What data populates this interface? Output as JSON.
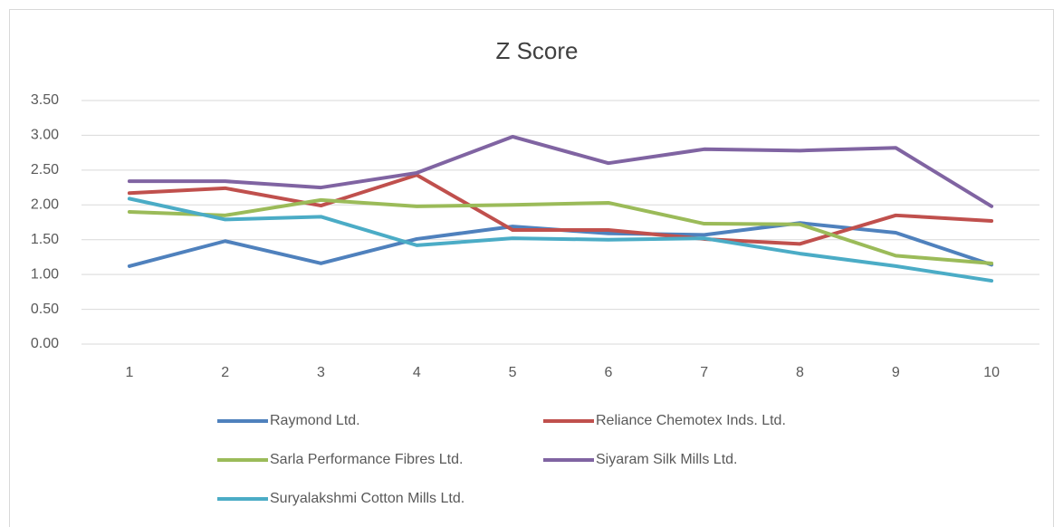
{
  "chart_data": {
    "type": "line",
    "title": "Z Score",
    "categories": [
      "1",
      "2",
      "3",
      "4",
      "5",
      "6",
      "7",
      "8",
      "9",
      "10"
    ],
    "series": [
      {
        "name": "Raymond Ltd.",
        "color": "#4f81bd",
        "values": [
          1.12,
          1.48,
          1.16,
          1.51,
          1.69,
          1.59,
          1.57,
          1.74,
          1.6,
          1.14
        ]
      },
      {
        "name": "Reliance Chemotex Inds. Ltd.",
        "color": "#c0504d",
        "values": [
          2.17,
          2.24,
          1.99,
          2.43,
          1.64,
          1.64,
          1.51,
          1.44,
          1.85,
          1.77
        ]
      },
      {
        "name": "Sarla Performance Fibres Ltd.",
        "color": "#9bbb59",
        "values": [
          1.9,
          1.85,
          2.07,
          1.98,
          2.0,
          2.03,
          1.73,
          1.72,
          1.27,
          1.16
        ]
      },
      {
        "name": "Siyaram Silk Mills Ltd.",
        "color": "#8064a2",
        "values": [
          2.34,
          2.34,
          2.25,
          2.46,
          2.98,
          2.6,
          2.8,
          2.78,
          2.82,
          1.98
        ]
      },
      {
        "name": "Suryalakshmi Cotton Mills Ltd.",
        "color": "#4bacc6",
        "values": [
          2.09,
          1.79,
          1.83,
          1.42,
          1.52,
          1.5,
          1.52,
          1.3,
          1.12,
          0.91
        ]
      }
    ],
    "ylim": [
      0,
      3.5
    ],
    "yticks": [
      {
        "value": 0,
        "label": "0.00"
      },
      {
        "value": 0.5,
        "label": "0.50"
      },
      {
        "value": 1,
        "label": "1.00"
      },
      {
        "value": 1.5,
        "label": "1.50"
      },
      {
        "value": 2,
        "label": "2.00"
      },
      {
        "value": 2.5,
        "label": "2.50"
      },
      {
        "value": 3,
        "label": "3.00"
      },
      {
        "value": 3.5,
        "label": "3.50"
      }
    ],
    "grid": true,
    "legend": "bottom"
  }
}
